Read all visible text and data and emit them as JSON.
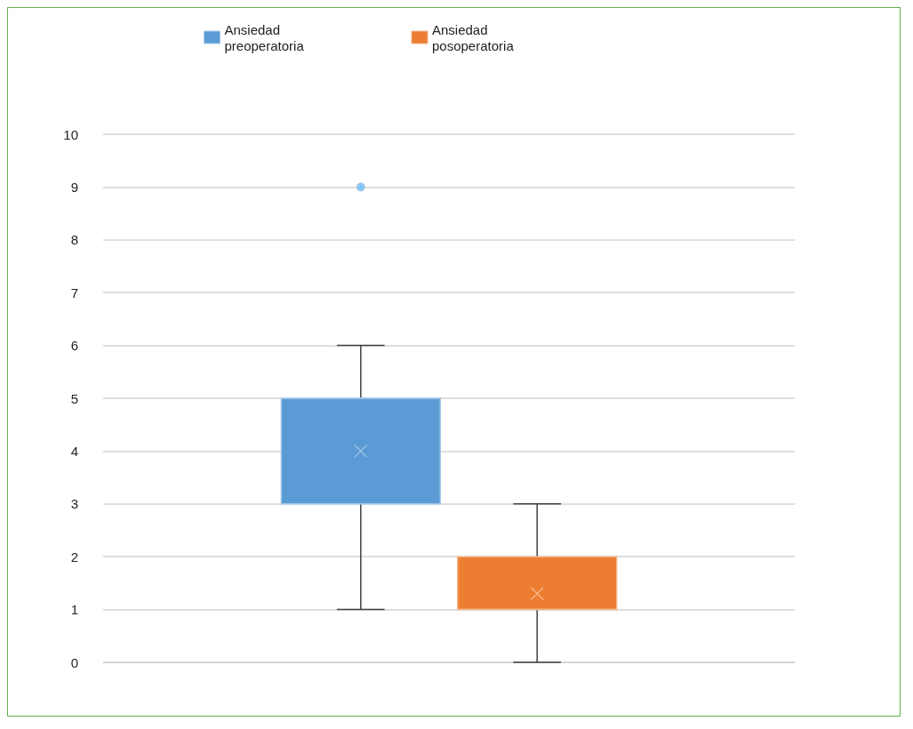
{
  "chart_data": {
    "type": "box",
    "categories": [
      null
    ],
    "ylim": [
      0,
      10
    ],
    "yticks": [
      0,
      1,
      2,
      3,
      4,
      5,
      6,
      7,
      8,
      9,
      10
    ],
    "grid": "y",
    "legend": "top",
    "marker": "cross",
    "series": [
      {
        "name": "Ansiedad preoperatoria",
        "color": "#5b9bd5",
        "boxes": [
          {
            "low": 1,
            "q1": 3,
            "median": 5,
            "q3": 5,
            "high": 6,
            "mean": 4,
            "outliers": [
              9
            ]
          }
        ]
      },
      {
        "name": "Ansiedad posoperatoria",
        "color": "#ed7d31",
        "boxes": [
          {
            "low": 0,
            "q1": 1,
            "median": 1,
            "q3": 2,
            "high": 3,
            "mean": 1.3
          }
        ]
      }
    ]
  }
}
